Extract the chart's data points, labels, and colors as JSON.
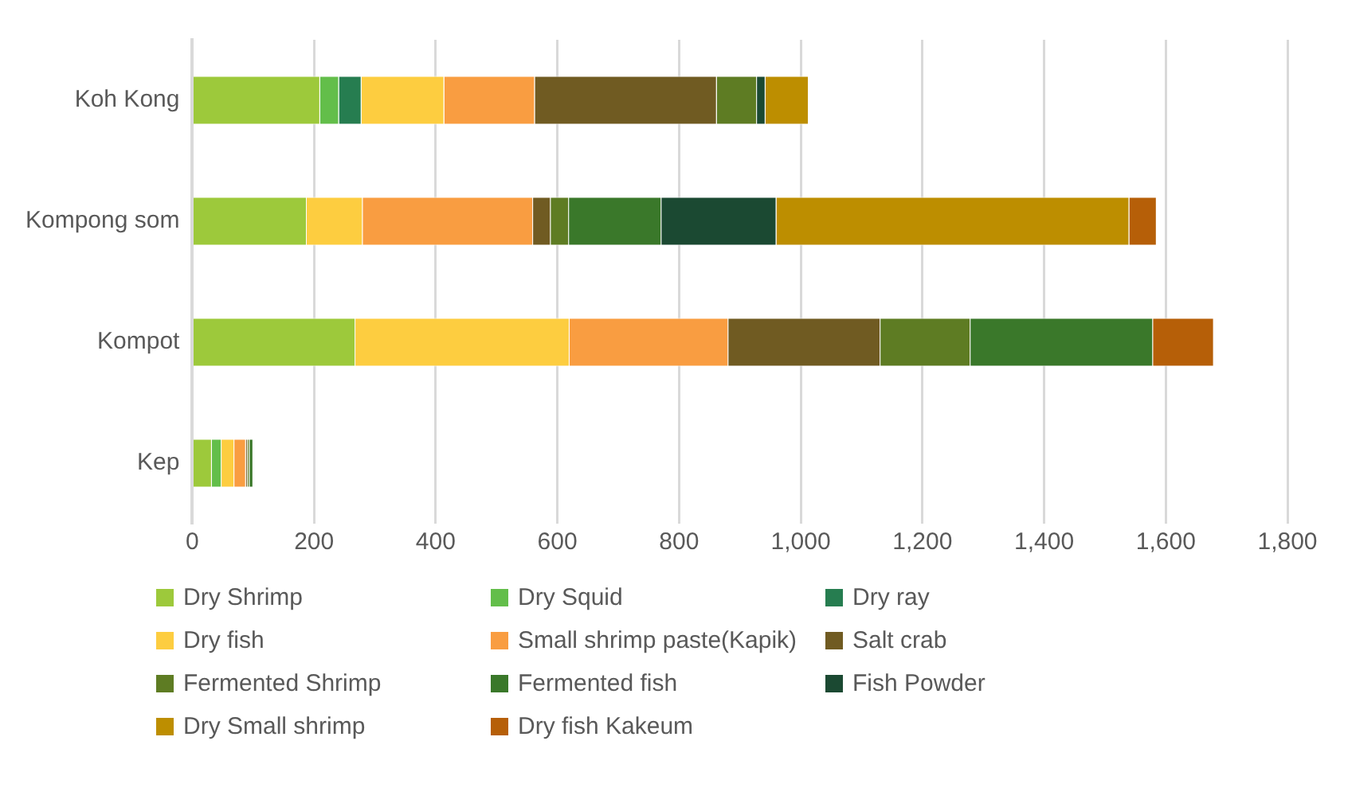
{
  "chart_data": {
    "type": "bar",
    "orientation": "horizontal",
    "stacked": true,
    "categories": [
      "Koh Kong",
      "Kompong som",
      "Kompot",
      "Kep"
    ],
    "xlim": [
      0,
      1800
    ],
    "xticks": [
      0,
      {
        "value": 200,
        "label": "200"
      },
      {
        "value": 400,
        "label": "400"
      },
      {
        "value": 600,
        "label": "600"
      },
      {
        "value": 800,
        "label": "800"
      },
      {
        "value": 1000,
        "label": "1,000"
      },
      {
        "value": 1200,
        "label": "1,200"
      },
      {
        "value": 1400,
        "label": "1,400"
      },
      {
        "value": 1600,
        "label": "1,600"
      },
      {
        "value": 1800,
        "label": "1,800"
      }
    ],
    "grid": "x",
    "legend": "bottom",
    "series": [
      {
        "name": "Dry Shrimp",
        "color": "#9dc93b",
        "values": [
          210,
          188,
          268,
          32
        ]
      },
      {
        "name": "Dry Squid",
        "color": "#63be4a",
        "values": [
          31,
          null,
          null,
          16
        ]
      },
      {
        "name": "Dry ray",
        "color": "#267d50",
        "values": [
          37,
          null,
          null,
          null
        ]
      },
      {
        "name": "Dry fish",
        "color": "#fdcd40",
        "values": [
          136,
          92,
          352,
          21
        ]
      },
      {
        "name": "Small shrimp paste(Kapik)",
        "color": "#f99d41",
        "values": [
          149,
          280,
          261,
          19
        ]
      },
      {
        "name": "Salt crab",
        "color": "#705b22",
        "values": [
          299,
          29,
          250,
          3
        ]
      },
      {
        "name": "Fermented Shrimp",
        "color": "#5e7c23",
        "values": [
          66,
          30,
          148,
          3
        ]
      },
      {
        "name": "Fermented fish",
        "color": "#3a782a",
        "values": [
          null,
          152,
          300,
          6
        ]
      },
      {
        "name": "Fish Powder",
        "color": "#1b4932",
        "values": [
          14,
          189,
          null,
          null
        ]
      },
      {
        "name": "Dry Small shrimp",
        "color": "#bd8e00",
        "values": [
          71,
          580,
          null,
          null
        ]
      },
      {
        "name": "Dry fish Kakeum",
        "color": "#b65f08",
        "values": [
          null,
          45,
          100,
          null
        ]
      }
    ]
  }
}
